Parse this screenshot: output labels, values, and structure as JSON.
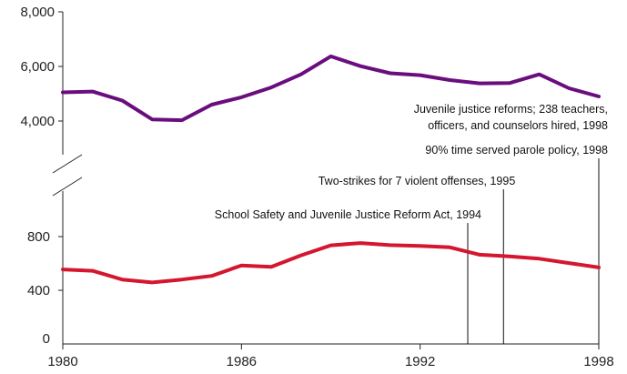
{
  "chart_data": {
    "type": "line",
    "title": "",
    "xlabel": "",
    "ylabel": "",
    "grid": false,
    "broken_y_axis": true,
    "x_ticks": [
      "1980",
      "1986",
      "1992",
      "1998"
    ],
    "upper_panel": {
      "ylim": [
        3000,
        8000
      ],
      "y_ticks": [
        "4,000",
        "6,000",
        "8,000"
      ],
      "series": [
        {
          "color": "#6a0e7e",
          "x": [
            1980,
            1981,
            1982,
            1983,
            1984,
            1985,
            1986,
            1987,
            1988,
            1989,
            1990,
            1991,
            1992,
            1993,
            1994,
            1995,
            1996,
            1997,
            1998
          ],
          "values": [
            5050,
            5080,
            4750,
            4060,
            4030,
            4600,
            4870,
            5230,
            5710,
            6370,
            6010,
            5750,
            5680,
            5500,
            5380,
            5390,
            5710,
            5200,
            4900
          ]
        }
      ]
    },
    "lower_panel": {
      "ylim": [
        0,
        1100
      ],
      "y_ticks": [
        "0",
        "400",
        "800"
      ],
      "series": [
        {
          "color": "#d4162f",
          "x": [
            1980,
            1981,
            1982,
            1983,
            1984,
            1985,
            1986,
            1987,
            1988,
            1989,
            1990,
            1991,
            1992,
            1993,
            1994,
            1995,
            1996,
            1997,
            1998
          ],
          "values": [
            555,
            545,
            480,
            458,
            480,
            507,
            585,
            575,
            660,
            735,
            752,
            736,
            730,
            720,
            665,
            652,
            635,
            603,
            570
          ]
        }
      ]
    },
    "annotations": [
      {
        "x": 1993.6,
        "lines": [
          "School Safety and Juvenile Justice Reform Act, 1994"
        ]
      },
      {
        "x": 1994.8,
        "lines": [
          "Two-strikes for 7 violent offenses, 1995"
        ]
      },
      {
        "x": 1998,
        "lines": [
          "90% time served parole policy, 1998"
        ]
      },
      {
        "x": 1998,
        "lines": [
          "Juvenile justice reforms;  238 teachers,",
          "officers, and counselors hired, 1998"
        ]
      }
    ]
  }
}
